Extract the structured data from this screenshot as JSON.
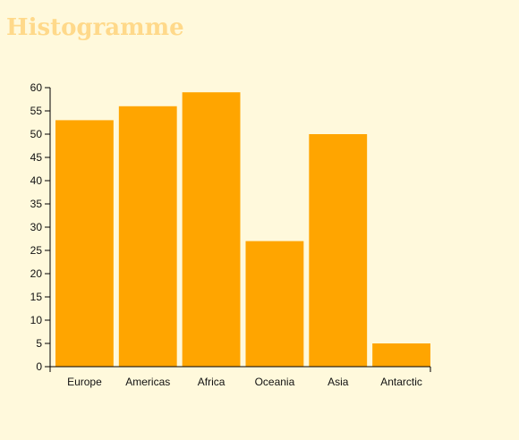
{
  "title": "Histogramme",
  "colors": {
    "background": "#fff9dc",
    "bar": "#ffa500",
    "title": "#ffd98a",
    "axis": "#000000"
  },
  "chart_data": {
    "type": "bar",
    "categories": [
      "Europe",
      "Americas",
      "Africa",
      "Oceania",
      "Asia",
      "Antarctic"
    ],
    "values": [
      53,
      56,
      59,
      27,
      50,
      5
    ],
    "ylim": [
      0,
      60
    ],
    "yticks": [
      0,
      5,
      10,
      15,
      20,
      25,
      30,
      35,
      40,
      45,
      50,
      55,
      60
    ],
    "grid": false,
    "legend": "none"
  }
}
